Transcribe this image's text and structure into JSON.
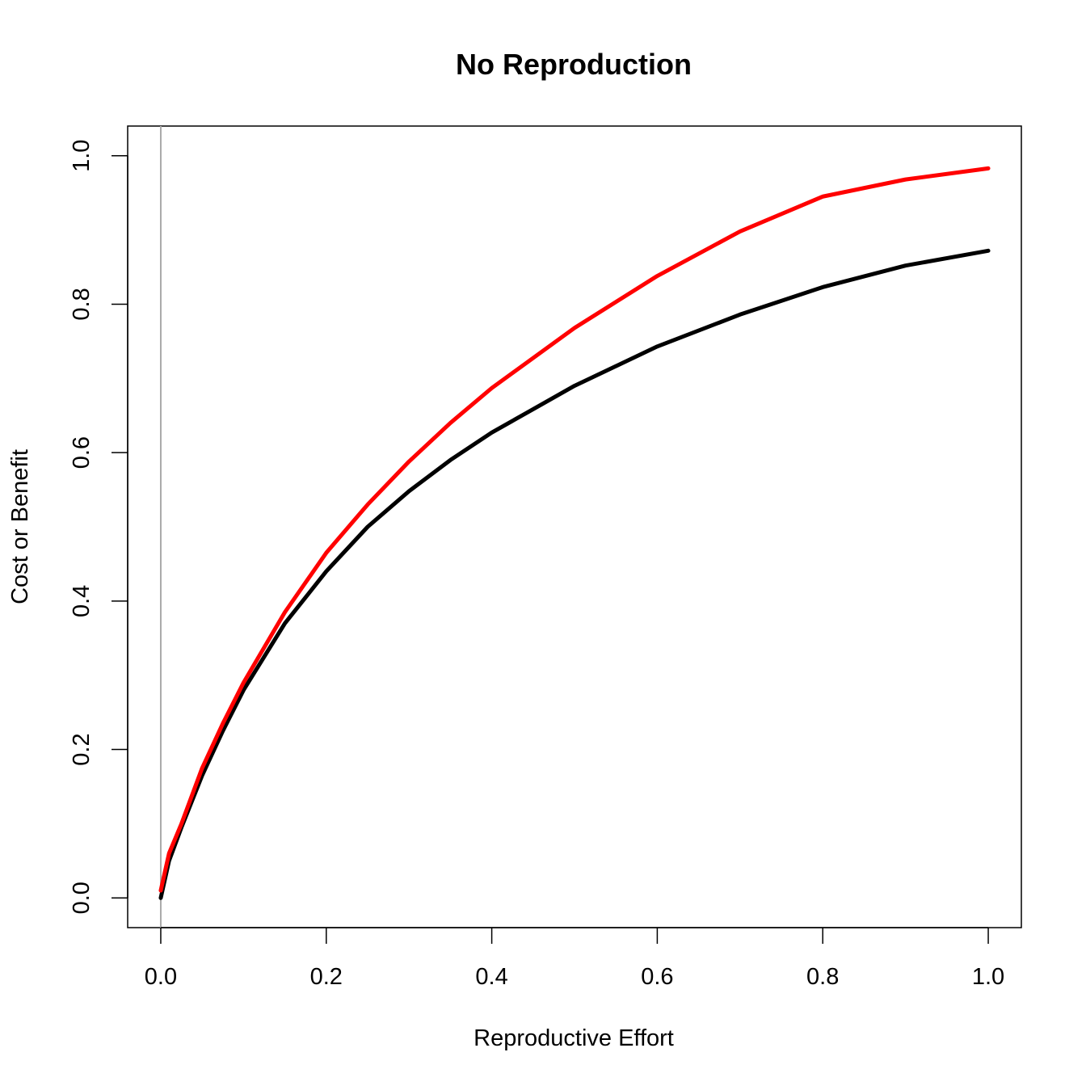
{
  "chart_data": {
    "type": "line",
    "title": "No Reproduction",
    "xlabel": "Reproductive Effort",
    "ylabel": "Cost or Benefit",
    "xlim": [
      -0.04,
      1.04
    ],
    "ylim": [
      -0.04,
      1.04
    ],
    "xticks": [
      "0.0",
      "0.2",
      "0.4",
      "0.6",
      "0.8",
      "1.0"
    ],
    "yticks": [
      "0.0",
      "0.2",
      "0.4",
      "0.6",
      "0.8",
      "1.0"
    ],
    "grid": false,
    "reference_line": {
      "x": 0,
      "color": "#aaaaaa"
    },
    "series": [
      {
        "color": "#000000",
        "x": [
          0,
          0.01,
          0.025,
          0.05,
          0.075,
          0.1,
          0.15,
          0.2,
          0.25,
          0.3,
          0.35,
          0.4,
          0.5,
          0.6,
          0.7,
          0.8,
          0.9,
          1.0
        ],
        "values": [
          0.0,
          0.05,
          0.095,
          0.165,
          0.225,
          0.28,
          0.37,
          0.44,
          0.5,
          0.548,
          0.59,
          0.627,
          0.69,
          0.743,
          0.786,
          0.823,
          0.852,
          0.872
        ]
      },
      {
        "color": "#ff0000",
        "x": [
          0,
          0.01,
          0.025,
          0.05,
          0.075,
          0.1,
          0.15,
          0.2,
          0.25,
          0.3,
          0.35,
          0.4,
          0.5,
          0.6,
          0.7,
          0.8,
          0.9,
          1.0
        ],
        "values": [
          0.01,
          0.06,
          0.1,
          0.175,
          0.235,
          0.29,
          0.385,
          0.465,
          0.53,
          0.588,
          0.64,
          0.687,
          0.768,
          0.838,
          0.898,
          0.945,
          0.968,
          0.983
        ]
      }
    ]
  }
}
